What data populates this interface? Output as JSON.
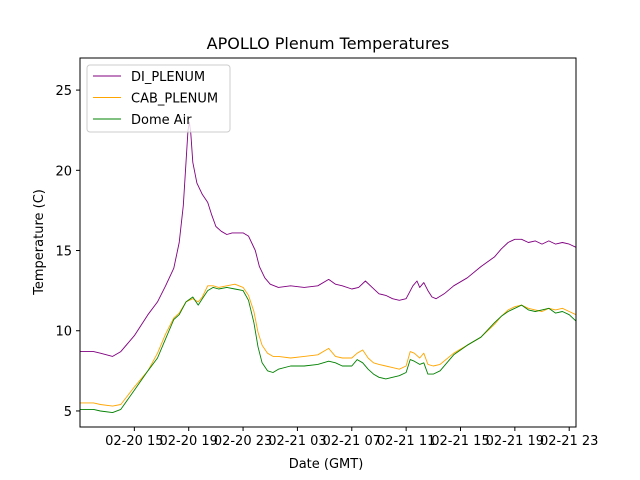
{
  "chart_data": {
    "type": "line",
    "title": "APOLLO Plenum Temperatures",
    "xlabel": "Date (GMT)",
    "ylabel": "Temperature (C)",
    "x_unit": "hours since 02-20 11:00 GMT",
    "xlim": [
      0,
      36.5
    ],
    "ylim": [
      4,
      27
    ],
    "legend_position": "top-left",
    "x_ticks": [
      {
        "value": 4,
        "label": "02-20 15"
      },
      {
        "value": 8,
        "label": "02-20 19"
      },
      {
        "value": 12,
        "label": "02-20 23"
      },
      {
        "value": 16,
        "label": "02-21 03"
      },
      {
        "value": 20,
        "label": "02-21 07"
      },
      {
        "value": 24,
        "label": "02-21 11"
      },
      {
        "value": 28,
        "label": "02-21 15"
      },
      {
        "value": 32,
        "label": "02-21 19"
      },
      {
        "value": 36,
        "label": "02-21 23"
      }
    ],
    "y_ticks": [
      {
        "value": 5,
        "label": "5"
      },
      {
        "value": 10,
        "label": "10"
      },
      {
        "value": 15,
        "label": "15"
      },
      {
        "value": 20,
        "label": "20"
      },
      {
        "value": 25,
        "label": "25"
      }
    ],
    "series": [
      {
        "name": "DI_PLENUM",
        "color": "#800080",
        "x": [
          0,
          1,
          1.5,
          2.4,
          3,
          4,
          5,
          5.7,
          6.3,
          6.9,
          7.3,
          7.6,
          7.8,
          7.95,
          8.05,
          8.15,
          8.3,
          8.6,
          9,
          9.4,
          9.7,
          10,
          10.4,
          10.8,
          11.2,
          11.6,
          12,
          12.4,
          12.9,
          13.2,
          13.6,
          14,
          14.6,
          15.5,
          16.5,
          17.5,
          18.3,
          18.8,
          19.3,
          20,
          20.5,
          21,
          21.5,
          22,
          22.5,
          23,
          23.5,
          24,
          24.5,
          24.8,
          25,
          25.3,
          25.6,
          25.9,
          26.2,
          26.8,
          27.5,
          28.5,
          29.5,
          30.5,
          31,
          31.5,
          32,
          32.5,
          33,
          33.5,
          34,
          34.5,
          35,
          35.5,
          36,
          36.5
        ],
        "y": [
          8.7,
          8.7,
          8.6,
          8.4,
          8.7,
          9.7,
          11.0,
          11.8,
          12.8,
          13.9,
          15.5,
          17.8,
          20.5,
          22.5,
          23.0,
          22.3,
          20.5,
          19.2,
          18.5,
          18.0,
          17.2,
          16.5,
          16.2,
          16.0,
          16.1,
          16.1,
          16.1,
          15.9,
          15.0,
          14.0,
          13.3,
          12.9,
          12.7,
          12.8,
          12.7,
          12.8,
          13.2,
          12.9,
          12.8,
          12.6,
          12.7,
          13.1,
          12.7,
          12.3,
          12.2,
          12.0,
          11.9,
          12.0,
          12.8,
          13.1,
          12.7,
          13.0,
          12.5,
          12.1,
          12.0,
          12.3,
          12.8,
          13.3,
          14.0,
          14.6,
          15.1,
          15.5,
          15.7,
          15.7,
          15.5,
          15.6,
          15.4,
          15.6,
          15.4,
          15.5,
          15.4,
          15.2
        ]
      },
      {
        "name": "CAB_PLENUM",
        "color": "#ffa500",
        "x": [
          0,
          1,
          1.5,
          2.4,
          3,
          4,
          5,
          5.7,
          6.3,
          6.9,
          7.3,
          7.8,
          8.3,
          8.7,
          9,
          9.4,
          9.8,
          10.2,
          10.8,
          11.4,
          12,
          12.4,
          12.8,
          13.1,
          13.4,
          13.8,
          14.2,
          14.6,
          15.5,
          16.5,
          17.5,
          18.3,
          18.8,
          19.3,
          20,
          20.4,
          20.8,
          21.2,
          21.6,
          22,
          22.5,
          23,
          23.5,
          24,
          24.3,
          24.6,
          25,
          25.3,
          25.6,
          26,
          26.5,
          27.5,
          28.5,
          29.5,
          30.5,
          31,
          31.5,
          32,
          32.5,
          33,
          33.5,
          34,
          34.5,
          35,
          35.5,
          36,
          36.5
        ],
        "y": [
          5.5,
          5.5,
          5.4,
          5.3,
          5.4,
          6.5,
          7.5,
          8.6,
          9.8,
          10.8,
          11.1,
          11.8,
          12.0,
          11.8,
          12.1,
          12.8,
          12.8,
          12.7,
          12.8,
          12.9,
          12.7,
          12.2,
          11.2,
          9.9,
          9.1,
          8.6,
          8.4,
          8.4,
          8.3,
          8.4,
          8.5,
          8.9,
          8.4,
          8.3,
          8.3,
          8.6,
          8.8,
          8.3,
          8.0,
          7.9,
          7.8,
          7.7,
          7.6,
          7.8,
          8.7,
          8.6,
          8.3,
          8.6,
          7.9,
          7.8,
          7.9,
          8.6,
          9.1,
          9.6,
          10.4,
          10.9,
          11.3,
          11.5,
          11.6,
          11.4,
          11.3,
          11.2,
          11.4,
          11.3,
          11.4,
          11.2,
          11.0
        ]
      },
      {
        "name": "Dome Air",
        "color": "#008000",
        "x": [
          0,
          1,
          1.5,
          2.4,
          3,
          4,
          5,
          5.7,
          6.3,
          6.9,
          7.3,
          7.8,
          8.3,
          8.7,
          9,
          9.4,
          9.8,
          10.2,
          10.8,
          11.4,
          12,
          12.4,
          12.8,
          13.1,
          13.4,
          13.8,
          14.2,
          14.6,
          15.5,
          16.5,
          17.5,
          18.3,
          18.8,
          19.3,
          20,
          20.4,
          20.8,
          21.2,
          21.6,
          22,
          22.5,
          23,
          23.5,
          24,
          24.3,
          24.6,
          25,
          25.3,
          25.6,
          26,
          26.5,
          27.5,
          28.5,
          29.5,
          30.5,
          31,
          31.5,
          32,
          32.5,
          33,
          33.5,
          34,
          34.5,
          35,
          35.5,
          36,
          36.5
        ],
        "y": [
          5.1,
          5.1,
          5.0,
          4.9,
          5.1,
          6.3,
          7.5,
          8.3,
          9.5,
          10.7,
          11.0,
          11.8,
          12.1,
          11.6,
          12.0,
          12.5,
          12.7,
          12.6,
          12.7,
          12.6,
          12.5,
          11.9,
          10.5,
          9.0,
          8.0,
          7.5,
          7.4,
          7.6,
          7.8,
          7.8,
          7.9,
          8.1,
          8.0,
          7.8,
          7.8,
          8.2,
          8.0,
          7.6,
          7.3,
          7.1,
          7.0,
          7.1,
          7.2,
          7.4,
          8.2,
          8.1,
          7.9,
          8.0,
          7.3,
          7.3,
          7.5,
          8.5,
          9.1,
          9.6,
          10.5,
          10.9,
          11.2,
          11.4,
          11.6,
          11.3,
          11.2,
          11.3,
          11.4,
          11.1,
          11.2,
          11.0,
          10.6
        ]
      }
    ]
  }
}
